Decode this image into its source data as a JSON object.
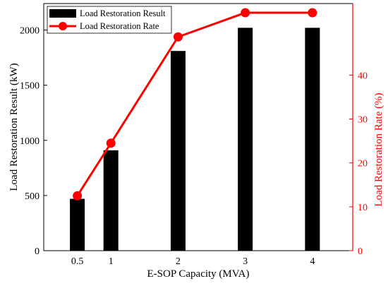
{
  "chart_data": {
    "type": "bar+line",
    "x_ticks": [
      0.5,
      1,
      2,
      3,
      4
    ],
    "xlabel": "E-SOP Capacity (MVA)",
    "xlim": [
      0,
      4.6
    ],
    "left_axis": {
      "label": "Load Restoration Result (kW)",
      "ylim": [
        0,
        2240
      ],
      "ticks": [
        0,
        500,
        1000,
        1500,
        2000
      ],
      "color": "#000000"
    },
    "right_axis": {
      "label": "Load Restoration Rate (%)",
      "ylim": [
        0,
        56.3
      ],
      "ticks": [
        0,
        10,
        20,
        30,
        40
      ],
      "color": "#ff0000"
    },
    "series": [
      {
        "name": "Load Restoration Result",
        "kind": "bar",
        "axis": "left",
        "color": "#000000",
        "x": [
          0.5,
          1,
          2,
          3,
          4
        ],
        "values": [
          470,
          910,
          1810,
          2020,
          2020
        ]
      },
      {
        "name": "Load Restoration Rate",
        "kind": "line",
        "axis": "right",
        "color": "#ff0000",
        "marker": "circle",
        "x": [
          0.5,
          1,
          2,
          3,
          4
        ],
        "values": [
          12.5,
          24.5,
          48.7,
          54.2,
          54.2
        ]
      }
    ],
    "legend_position": "top-left",
    "grid": false
  }
}
